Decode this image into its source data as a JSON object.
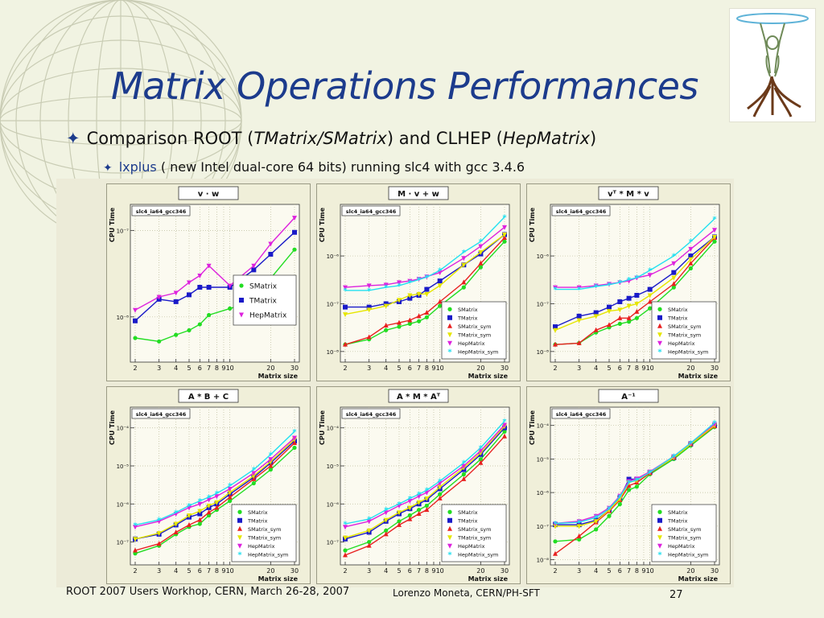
{
  "slide": {
    "title": "Matrix Operations Performances",
    "bullet1": {
      "pre": "Comparison ROOT (",
      "it1": "TMatrix/SMatrix",
      "mid": ") and CLHEP (",
      "it2": "HepMatrix",
      "post": ")"
    },
    "bullet2": {
      "highlight": "lxplus",
      "rest": " ( new Intel dual-core 64 bits) running slc4 with gcc 3.4.6"
    },
    "footer_left": "ROOT 2007  Users Workhop, CERN, March 26-28, 2007",
    "footer_author": "Lorenzo Moneta, CERN/PH-SFT",
    "page_number": "27"
  },
  "series_colors": {
    "SMatrix": "#22dd22",
    "TMatrix": "#1a1ac8",
    "SMatrix_sym": "#e82020",
    "TMatrix_sym": "#e6e600",
    "HepMatrix": "#dd22dd",
    "HepMatrix_sym": "#22e0f0"
  },
  "series_markers": {
    "SMatrix": "circle",
    "TMatrix": "square",
    "SMatrix_sym": "triangle",
    "TMatrix_sym": "triangle-down",
    "HepMatrix": "triangle-down",
    "HepMatrix_sym": "star"
  },
  "chart_data": [
    {
      "type": "line",
      "title": "v · w",
      "tag": "slc4_ia64_gcc346",
      "xlabel": "Matrix size",
      "ylabel": "CPU Time",
      "xscale": "log",
      "yscale": "log",
      "xlim": [
        2,
        30
      ],
      "ylim": [
        3e-09,
        2e-07
      ],
      "x_ticks": [
        2,
        3,
        4,
        5,
        6,
        7,
        8,
        9,
        10,
        20,
        30
      ],
      "x_tick_labels": [
        "2",
        "3",
        "4",
        "5",
        "6",
        "7",
        "8",
        "9",
        "10",
        "20",
        "30"
      ],
      "y_ticks": [
        1e-08,
        1e-07
      ],
      "y_tick_labels": [
        "10⁻⁸",
        "10⁻⁷"
      ],
      "legend": "right",
      "x": [
        2,
        3,
        4,
        5,
        6,
        7,
        10,
        15,
        20,
        30
      ],
      "series": [
        {
          "name": "SMatrix",
          "values": [
            5.7e-09,
            5.2e-09,
            6.2e-09,
            7e-09,
            8.2e-09,
            1.05e-08,
            1.25e-08,
            1.5e-08,
            2.8e-08,
            6e-08
          ]
        },
        {
          "name": "TMatrix",
          "values": [
            9e-09,
            1.6e-08,
            1.5e-08,
            1.8e-08,
            2.2e-08,
            2.2e-08,
            2.2e-08,
            3.5e-08,
            5.3e-08,
            9.5e-08
          ]
        },
        {
          "name": "HepMatrix",
          "values": [
            1.2e-08,
            1.7e-08,
            1.9e-08,
            2.5e-08,
            3e-08,
            3.9e-08,
            2.3e-08,
            3.9e-08,
            7e-08,
            1.4e-07
          ]
        }
      ]
    },
    {
      "type": "line",
      "title": "M · v + w",
      "tag": "slc4_ia64_gcc346",
      "xlabel": "Matrix size",
      "ylabel": "CPU Time",
      "xscale": "log",
      "yscale": "log",
      "xlim": [
        2,
        30
      ],
      "ylim": [
        6e-09,
        1.2e-05
      ],
      "x_ticks": [
        2,
        3,
        4,
        5,
        6,
        7,
        8,
        9,
        10,
        20,
        30
      ],
      "x_tick_labels": [
        "2",
        "3",
        "4",
        "5",
        "6",
        "7",
        "8",
        "9",
        "10",
        "20",
        "30"
      ],
      "y_ticks": [
        1e-08,
        1e-07,
        1e-06
      ],
      "y_tick_labels": [
        "10⁻⁸",
        "10⁻⁷",
        "10⁻⁶"
      ],
      "legend": "bottom-right",
      "x": [
        2,
        3,
        4,
        5,
        6,
        7,
        8,
        10,
        15,
        20,
        30
      ],
      "series": [
        {
          "name": "SMatrix",
          "values": [
            1.4e-08,
            1.8e-08,
            2.8e-08,
            3.3e-08,
            3.8e-08,
            4.3e-08,
            5.2e-08,
            9e-08,
            2.2e-07,
            5.8e-07,
            2e-06
          ]
        },
        {
          "name": "TMatrix",
          "values": [
            8.5e-08,
            8.5e-08,
            1e-07,
            1.1e-07,
            1.3e-07,
            1.5e-07,
            2e-07,
            3e-07,
            6.5e-07,
            1.1e-06,
            2.8e-06
          ]
        },
        {
          "name": "SMatrix_sym",
          "values": [
            1.4e-08,
            2e-08,
            3.5e-08,
            4e-08,
            4.5e-08,
            5.5e-08,
            6.5e-08,
            1.1e-07,
            2.8e-07,
            7e-07,
            2.4e-06
          ]
        },
        {
          "name": "TMatrix_sym",
          "values": [
            6e-08,
            7.5e-08,
            9e-08,
            1.2e-07,
            1.5e-07,
            1.6e-07,
            1.6e-07,
            2.4e-07,
            6.5e-07,
            1.2e-06,
            2.8e-06
          ]
        },
        {
          "name": "HepMatrix",
          "values": [
            2.2e-07,
            2.4e-07,
            2.5e-07,
            2.8e-07,
            3e-07,
            3.3e-07,
            3.7e-07,
            4.5e-07,
            9e-07,
            1.6e-06,
            4e-06
          ]
        },
        {
          "name": "HepMatrix_sym",
          "values": [
            1.9e-07,
            1.9e-07,
            2.2e-07,
            2.4e-07,
            2.8e-07,
            3.2e-07,
            3.6e-07,
            5e-07,
            1.2e-06,
            2e-06,
            6.5e-06
          ]
        }
      ]
    },
    {
      "type": "line",
      "title": "vᵀ * M * v",
      "tag": "slc4_ia64_gcc346",
      "xlabel": "Matrix size",
      "ylabel": "CPU Time",
      "xscale": "log",
      "yscale": "log",
      "xlim": [
        2,
        30
      ],
      "ylim": [
        6e-09,
        1.2e-05
      ],
      "x_ticks": [
        2,
        3,
        4,
        5,
        6,
        7,
        8,
        9,
        10,
        20,
        30
      ],
      "x_tick_labels": [
        "2",
        "3",
        "4",
        "5",
        "6",
        "7",
        "8",
        "9",
        "10",
        "20",
        "30"
      ],
      "y_ticks": [
        1e-08,
        1e-07,
        1e-06
      ],
      "y_tick_labels": [
        "10⁻⁸",
        "10⁻⁷",
        "10⁻⁶"
      ],
      "legend": "bottom-right",
      "x": [
        2,
        3,
        4,
        5,
        6,
        7,
        8,
        10,
        15,
        20,
        30
      ],
      "series": [
        {
          "name": "SMatrix",
          "values": [
            1.4e-08,
            1.5e-08,
            2.5e-08,
            3.2e-08,
            3.8e-08,
            4.2e-08,
            5e-08,
            8e-08,
            2.2e-07,
            5.5e-07,
            2e-06
          ]
        },
        {
          "name": "TMatrix",
          "values": [
            3.3e-08,
            5.5e-08,
            6.5e-08,
            8.5e-08,
            1.1e-07,
            1.3e-07,
            1.5e-07,
            2e-07,
            4.5e-07,
            1e-06,
            2.5e-06
          ]
        },
        {
          "name": "SMatrix_sym",
          "values": [
            1.4e-08,
            1.5e-08,
            2.8e-08,
            3.6e-08,
            5e-08,
            5e-08,
            6.8e-08,
            1.1e-07,
            2.6e-07,
            7e-07,
            2.4e-06
          ]
        },
        {
          "name": "TMatrix_sym",
          "values": [
            2.8e-08,
            4.5e-08,
            5.5e-08,
            7e-08,
            7.5e-08,
            9e-08,
            1e-07,
            1.5e-07,
            3.5e-07,
            8.5e-07,
            2.5e-06
          ]
        },
        {
          "name": "HepMatrix",
          "values": [
            2.2e-07,
            2.2e-07,
            2.4e-07,
            2.6e-07,
            2.8e-07,
            3e-07,
            3.5e-07,
            4e-07,
            7e-07,
            1.4e-06,
            3.5e-06
          ]
        },
        {
          "name": "HepMatrix_sym",
          "values": [
            2e-07,
            2e-07,
            2.3e-07,
            2.5e-07,
            2.8e-07,
            3.2e-07,
            3.5e-07,
            5e-07,
            1e-06,
            2e-06,
            6e-06
          ]
        }
      ]
    },
    {
      "type": "line",
      "title": "A * B + C",
      "tag": "slc4_ia64_gcc346",
      "xlabel": "Matrix size",
      "ylabel": "CPU Time",
      "xscale": "log",
      "yscale": "log",
      "xlim": [
        2,
        30
      ],
      "ylim": [
        2.5e-08,
        0.00035
      ],
      "x_ticks": [
        2,
        3,
        4,
        5,
        6,
        7,
        8,
        9,
        10,
        20,
        30
      ],
      "x_tick_labels": [
        "2",
        "3",
        "4",
        "5",
        "6",
        "7",
        "8",
        "9",
        "10",
        "20",
        "30"
      ],
      "y_ticks": [
        1e-07,
        1e-06,
        1e-05,
        0.0001
      ],
      "y_tick_labels": [
        "10⁻⁷",
        "10⁻⁶",
        "10⁻⁵",
        "10⁻⁴"
      ],
      "legend": "bottom-right",
      "x": [
        2,
        3,
        4,
        5,
        6,
        7,
        8,
        10,
        15,
        20,
        30
      ],
      "series": [
        {
          "name": "SMatrix",
          "values": [
            5e-08,
            8e-08,
            1.6e-07,
            2.5e-07,
            3e-07,
            5e-07,
            7e-07,
            1.2e-06,
            3.5e-06,
            8e-06,
            3e-05
          ]
        },
        {
          "name": "TMatrix",
          "values": [
            1.2e-07,
            1.6e-07,
            2.8e-07,
            4.5e-07,
            5.5e-07,
            8e-07,
            1e-06,
            1.8e-06,
            5e-06,
            1.2e-05,
            4.5e-05
          ]
        },
        {
          "name": "SMatrix_sym",
          "values": [
            6e-08,
            9e-08,
            1.8e-07,
            2.8e-07,
            3.8e-07,
            6e-07,
            8e-07,
            1.5e-06,
            4.5e-06,
            1e-05,
            4e-05
          ]
        },
        {
          "name": "TMatrix_sym",
          "values": [
            1.2e-07,
            1.7e-07,
            3e-07,
            5e-07,
            6.5e-07,
            9e-07,
            1.1e-06,
            2e-06,
            5.5e-06,
            1.3e-05,
            5e-05
          ]
        },
        {
          "name": "HepMatrix",
          "values": [
            2.5e-07,
            3.5e-07,
            5.5e-07,
            8e-07,
            1e-06,
            1.3e-06,
            1.6e-06,
            2.5e-06,
            6.5e-06,
            1.5e-05,
            5.5e-05
          ]
        },
        {
          "name": "HepMatrix_sym",
          "values": [
            2.8e-07,
            3.8e-07,
            6e-07,
            9e-07,
            1.2e-06,
            1.5e-06,
            1.9e-06,
            3e-06,
            8e-06,
            2e-05,
            8e-05
          ]
        }
      ]
    },
    {
      "type": "line",
      "title": "A * M * Aᵀ",
      "tag": "slc4_ia64_gcc346",
      "xlabel": "Matrix size",
      "ylabel": "CPU Time",
      "xscale": "log",
      "yscale": "log",
      "xlim": [
        2,
        30
      ],
      "ylim": [
        2.5e-08,
        0.00035
      ],
      "x_ticks": [
        2,
        3,
        4,
        5,
        6,
        7,
        8,
        9,
        10,
        20,
        30
      ],
      "x_tick_labels": [
        "2",
        "3",
        "4",
        "5",
        "6",
        "7",
        "8",
        "9",
        "10",
        "20",
        "30"
      ],
      "y_ticks": [
        1e-07,
        1e-06,
        1e-05,
        0.0001
      ],
      "y_tick_labels": [
        "10⁻⁷",
        "10⁻⁶",
        "10⁻⁵",
        "10⁻⁴"
      ],
      "legend": "bottom-right",
      "x": [
        2,
        3,
        4,
        5,
        6,
        7,
        8,
        10,
        15,
        20,
        30
      ],
      "series": [
        {
          "name": "SMatrix",
          "values": [
            6e-08,
            1e-07,
            2e-07,
            3.5e-07,
            5e-07,
            7e-07,
            9e-07,
            1.8e-06,
            6e-06,
            1.5e-05,
            8e-05
          ]
        },
        {
          "name": "TMatrix",
          "values": [
            1.2e-07,
            1.8e-07,
            3.5e-07,
            5.5e-07,
            7.5e-07,
            1e-06,
            1.3e-06,
            2.5e-06,
            8e-06,
            2e-05,
            0.0001
          ]
        },
        {
          "name": "SMatrix_sym",
          "values": [
            4.5e-08,
            8e-08,
            1.6e-07,
            2.8e-07,
            4e-07,
            5.5e-07,
            7e-07,
            1.4e-06,
            4.5e-06,
            1.2e-05,
            6e-05
          ]
        },
        {
          "name": "TMatrix_sym",
          "values": [
            1.3e-07,
            2e-07,
            3.8e-07,
            6e-07,
            8e-07,
            1.1e-06,
            1.4e-06,
            2.8e-06,
            9e-06,
            2.2e-05,
            0.00011
          ]
        },
        {
          "name": "HepMatrix",
          "values": [
            2.5e-07,
            3.5e-07,
            6e-07,
            9e-07,
            1.2e-06,
            1.6e-06,
            2e-06,
            3.5e-06,
            1e-05,
            2.5e-05,
            0.00012
          ]
        },
        {
          "name": "HepMatrix_sym",
          "values": [
            3e-07,
            4e-07,
            7e-07,
            1e-06,
            1.4e-06,
            1.8e-06,
            2.3e-06,
            4e-06,
            1.2e-05,
            3e-05,
            0.00015
          ]
        }
      ]
    },
    {
      "type": "line",
      "title": "A⁻¹",
      "tag": "slc4_ia64_gcc346",
      "xlabel": "Matrix size",
      "ylabel": "CPU Time",
      "xscale": "log",
      "yscale": "log",
      "xlim": [
        2,
        30
      ],
      "ylim": [
        7e-09,
        0.00035
      ],
      "x_ticks": [
        2,
        3,
        4,
        5,
        6,
        7,
        8,
        9,
        10,
        20,
        30
      ],
      "x_tick_labels": [
        "2",
        "3",
        "4",
        "5",
        "6",
        "7",
        "8",
        "9",
        "10",
        "20",
        "30"
      ],
      "y_ticks": [
        1e-08,
        1e-07,
        1e-06,
        1e-05,
        0.0001
      ],
      "y_tick_labels": [
        "10⁻⁸",
        "10⁻⁷",
        "10⁻⁶",
        "10⁻⁵",
        "10⁻⁴"
      ],
      "legend": "bottom-right",
      "x": [
        2,
        3,
        4,
        5,
        6,
        7,
        8,
        10,
        15,
        20,
        30
      ],
      "series": [
        {
          "name": "SMatrix",
          "values": [
            3.5e-08,
            4e-08,
            8e-08,
            2e-07,
            4.5e-07,
            1.2e-06,
            1.5e-06,
            3.5e-06,
            1e-05,
            2.5e-05,
            9e-05
          ]
        },
        {
          "name": "TMatrix",
          "values": [
            1.1e-07,
            1.1e-07,
            1.5e-07,
            3e-07,
            7e-07,
            2.5e-06,
            2.5e-06,
            4e-06,
            1.1e-05,
            2.8e-05,
            0.0001
          ]
        },
        {
          "name": "SMatrix_sym",
          "values": [
            1.5e-08,
            5e-08,
            1.3e-07,
            2.8e-07,
            6e-07,
            1.6e-06,
            2e-06,
            3.8e-06,
            1.1e-05,
            2.8e-05,
            9.5e-05
          ]
        },
        {
          "name": "TMatrix_sym",
          "values": [
            1e-07,
            1e-07,
            1.4e-07,
            3e-07,
            6.5e-07,
            2e-06,
            2.3e-06,
            4e-06,
            1.1e-05,
            2.8e-05,
            0.0001
          ]
        },
        {
          "name": "HepMatrix",
          "values": [
            1.2e-07,
            1.4e-07,
            2e-07,
            3.5e-07,
            8e-07,
            2.2e-06,
            2.6e-06,
            4.2e-06,
            1.2e-05,
            3e-05,
            0.00011
          ]
        },
        {
          "name": "HepMatrix_sym",
          "values": [
            1.2e-07,
            1.3e-07,
            1.8e-07,
            3.3e-07,
            7.5e-07,
            2e-06,
            2.4e-06,
            4e-06,
            1.2e-05,
            3e-05,
            0.00012
          ]
        }
      ]
    }
  ]
}
